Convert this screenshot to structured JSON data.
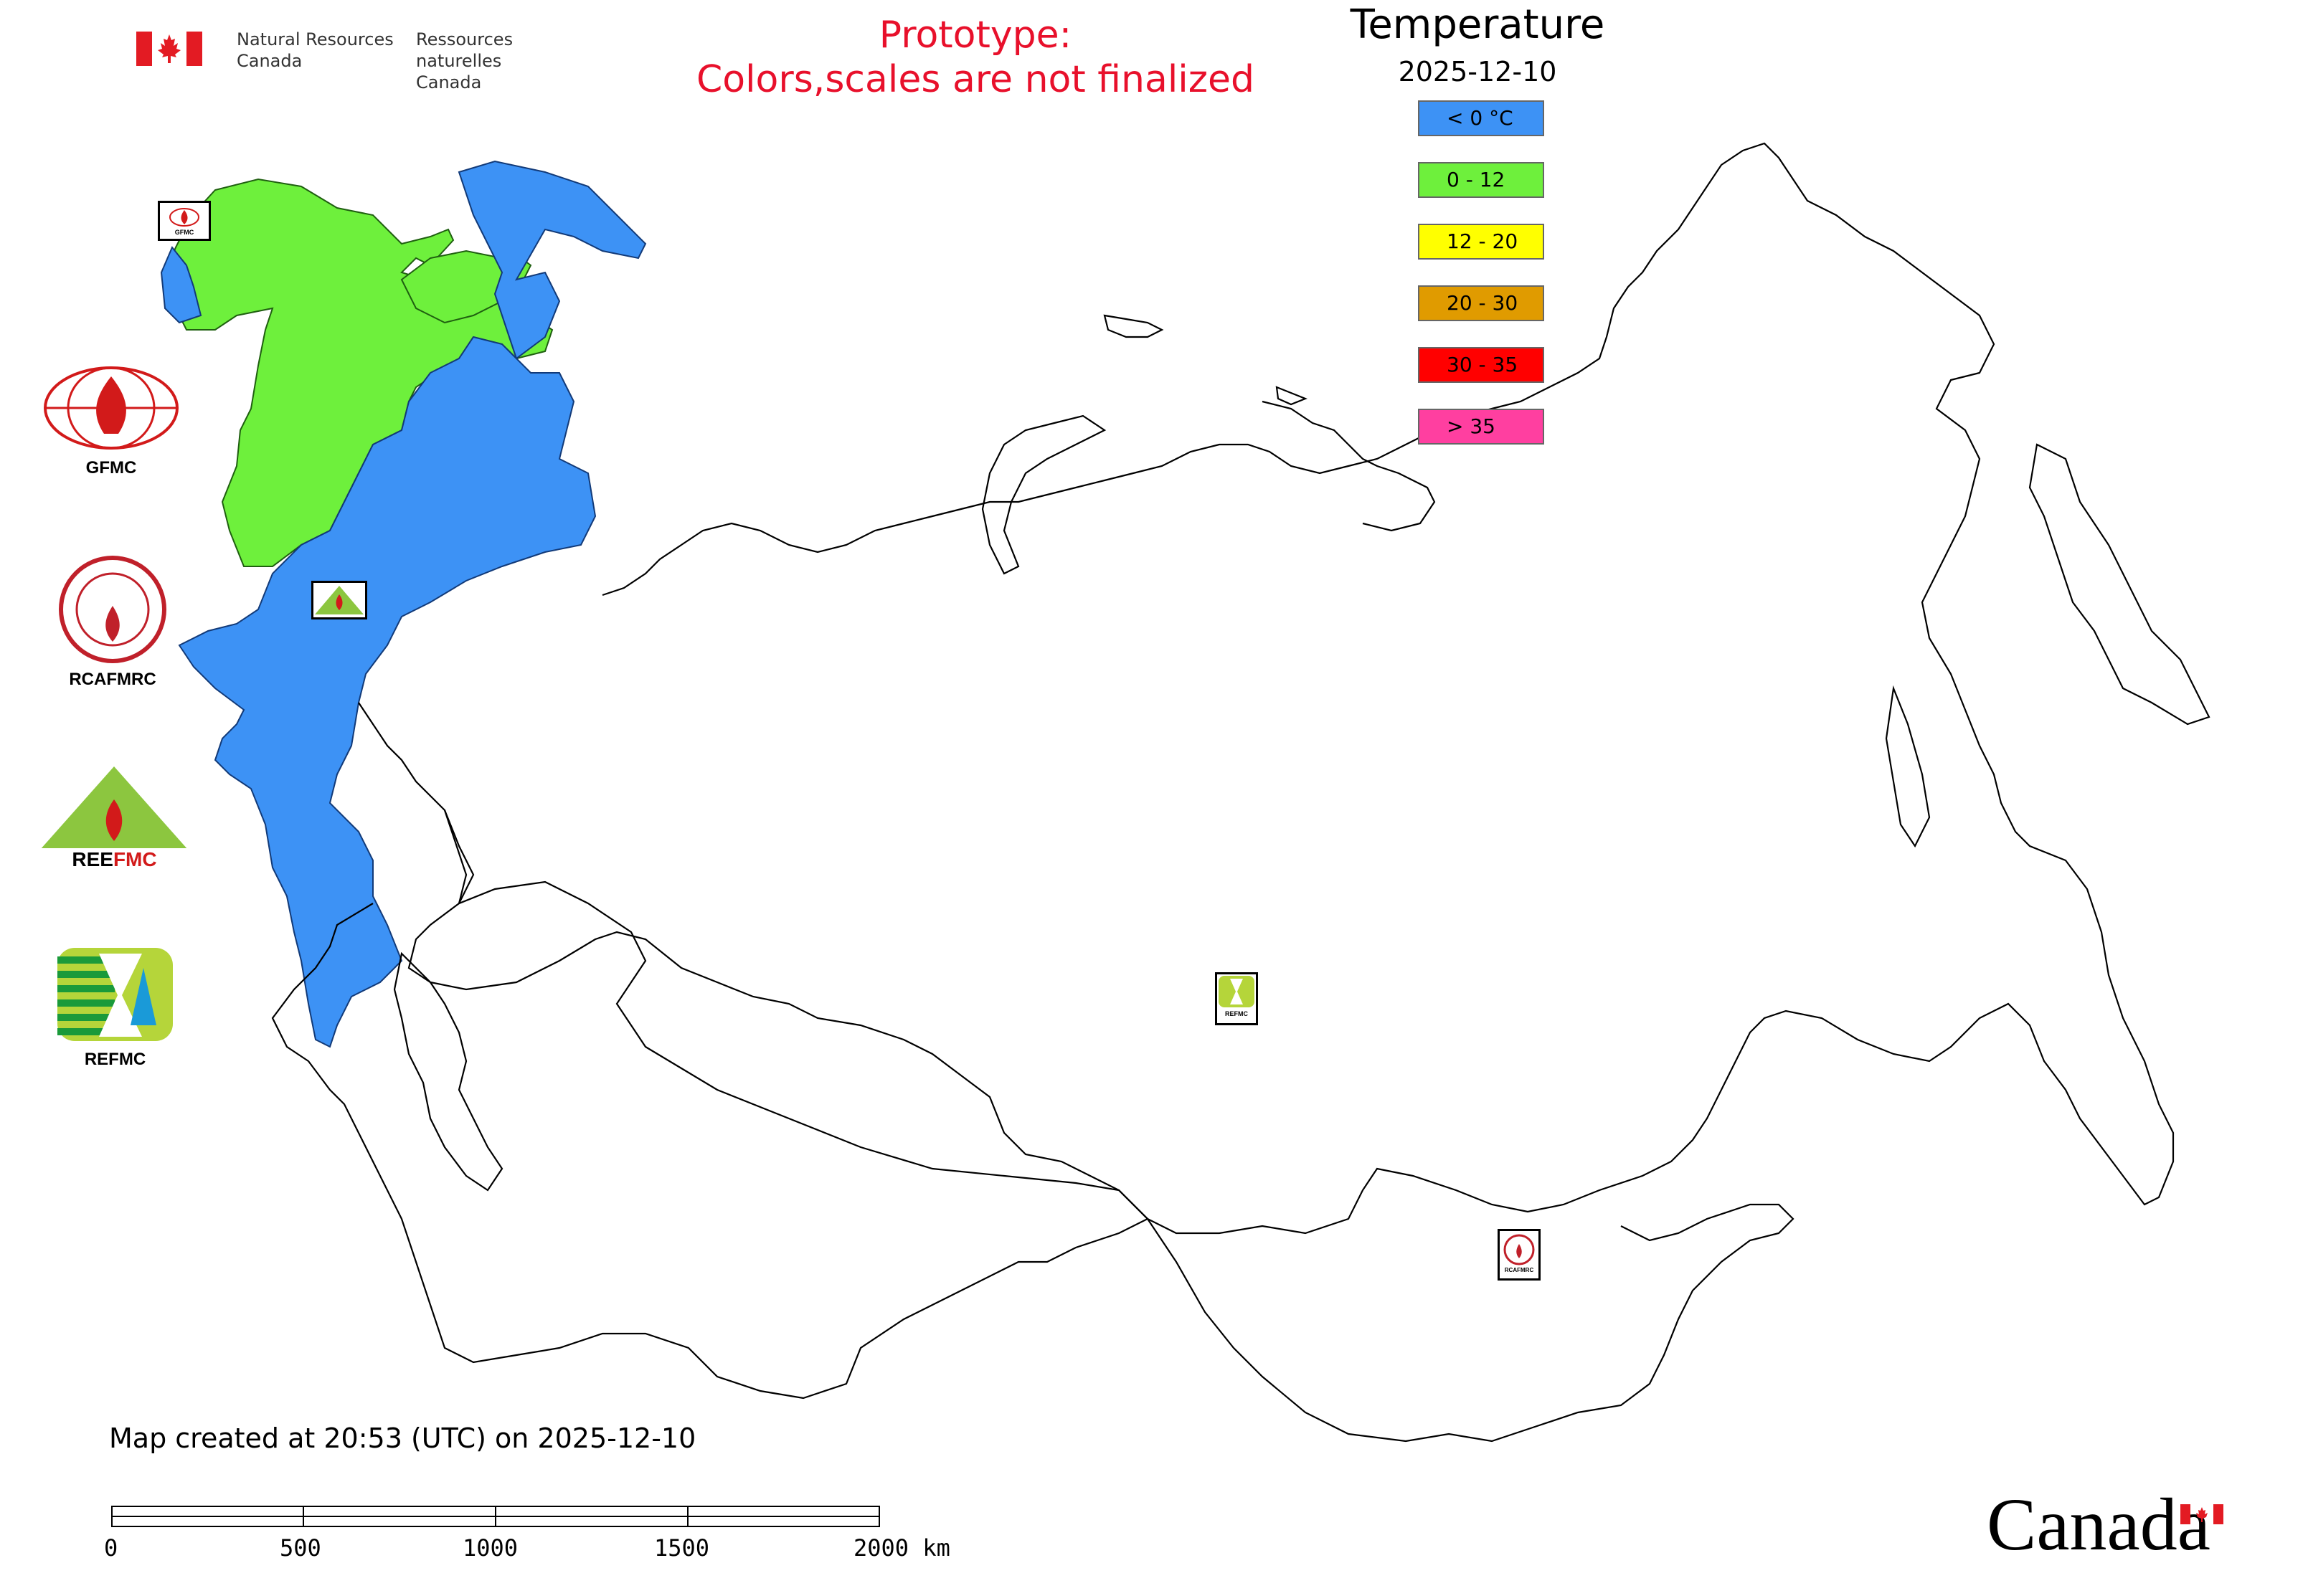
{
  "header": {
    "agency_en_line1": "Natural Resources",
    "agency_en_line2": "Canada",
    "agency_fr_line1": "Ressources naturelles",
    "agency_fr_line2": "Canada",
    "prototype_line1": "Prototype:",
    "prototype_line2": "Colors,scales are not finalized"
  },
  "legend": {
    "title": "Temperature",
    "date": "2025-12-10",
    "items": [
      {
        "label": "< 0 °C",
        "color": "#3d92f5"
      },
      {
        "label": "0 - 12",
        "color": "#6ef03c"
      },
      {
        "label": "12 - 20",
        "color": "#ffff00"
      },
      {
        "label": "20 - 30",
        "color": "#e09b00"
      },
      {
        "label": "30 - 35",
        "color": "#ff0000"
      },
      {
        "label": "> 35",
        "color": "#ff3fa0"
      }
    ]
  },
  "organizations": [
    {
      "label": "GFMC",
      "icon": "gfmc-logo-icon"
    },
    {
      "label": "RCAFMRC",
      "icon": "rcafmrc-logo-icon"
    },
    {
      "label": "REEFMC",
      "icon": "reefmc-logo-icon"
    },
    {
      "label": "REFMC",
      "icon": "refmc-logo-icon"
    }
  ],
  "map_markers": {
    "gfmc": "GFMC",
    "reefmc": "REEFMC",
    "refmc": "REFMC",
    "rcafmrc": "RCAFMRC"
  },
  "footer": {
    "created": "Map created at 20:53 (UTC) on 2025-12-10",
    "scale_labels": [
      "0",
      "500",
      "1000",
      "1500",
      "2000 km"
    ],
    "wordmark": "Canada"
  },
  "colors": {
    "cold": "#3d92f5",
    "mild": "#6ef03c",
    "prototype_red": "#e8102b"
  }
}
